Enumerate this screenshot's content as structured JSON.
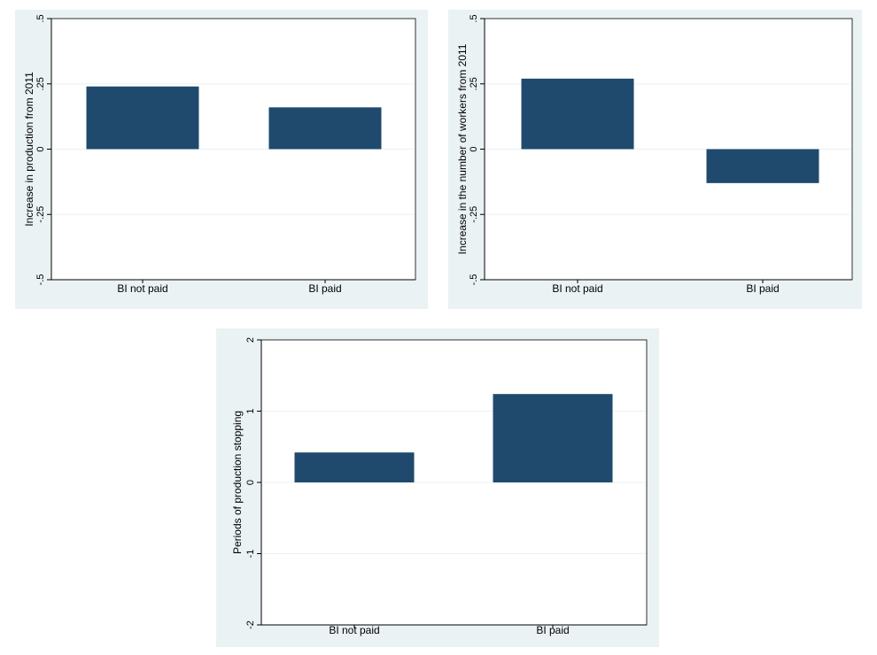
{
  "chart_data": [
    {
      "type": "bar",
      "categories": [
        "BI not paid",
        "BI paid"
      ],
      "values": [
        0.24,
        0.16
      ],
      "ylabel": "Increase in production from 2011",
      "xlabel": "",
      "ylim": [
        -0.5,
        0.5
      ],
      "yticks": [
        ".5",
        ".25",
        "0",
        "-.25",
        "-.5"
      ],
      "ytick_values": [
        0.5,
        0.25,
        0,
        -0.25,
        -0.5
      ],
      "grid": true,
      "bar_color": "#1f4a6e",
      "background_color": "#eaf2f3"
    },
    {
      "type": "bar",
      "categories": [
        "BI not paid",
        "BI paid"
      ],
      "values": [
        0.27,
        -0.13
      ],
      "ylabel": "Increase in the number of workers from 2011",
      "xlabel": "",
      "ylim": [
        -0.5,
        0.5
      ],
      "yticks": [
        ".5",
        ".25",
        "0",
        "-.25",
        "-.5"
      ],
      "ytick_values": [
        0.5,
        0.25,
        0,
        -0.25,
        -0.5
      ],
      "grid": true,
      "bar_color": "#1f4a6e",
      "background_color": "#eaf2f3"
    },
    {
      "type": "bar",
      "categories": [
        "BI not paid",
        "BI paid"
      ],
      "values": [
        0.42,
        1.24
      ],
      "ylabel": "Periods of production stopping",
      "xlabel": "",
      "ylim": [
        -2,
        2
      ],
      "yticks": [
        "2",
        "1",
        "0",
        "-1",
        "-2"
      ],
      "ytick_values": [
        2,
        1,
        0,
        -1,
        -2
      ],
      "grid": true,
      "bar_color": "#1f4a6e",
      "background_color": "#eaf2f3"
    }
  ]
}
